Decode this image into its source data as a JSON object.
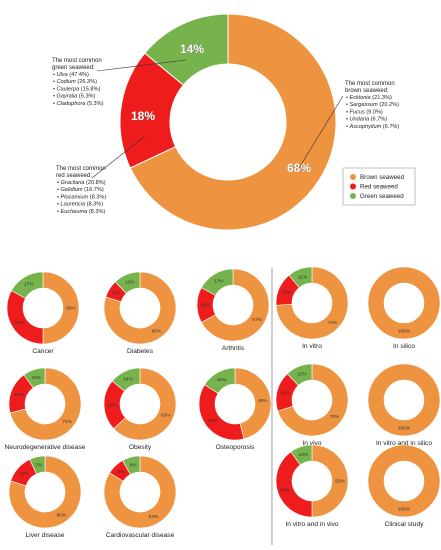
{
  "colors": {
    "brown": "#EE9340",
    "red": "#EE1C1C",
    "green": "#77B34D"
  },
  "chart_data": [
    {
      "type": "pie",
      "name": "main",
      "slices": [
        {
          "label": "Brown seaweed",
          "value": 68,
          "display": "68%"
        },
        {
          "label": "Red seaweed",
          "value": 18,
          "display": "18%"
        },
        {
          "label": "Green seaweed",
          "value": 14,
          "display": "14%"
        }
      ],
      "legend": [
        "Brown seaweed",
        "Red seaweed",
        "Green seaweed"
      ],
      "legend_position": "right",
      "annotations": {
        "green": {
          "title_lines": [
            "The most common",
            "green seaweed:"
          ],
          "items": [
            {
              "species": "Ulva",
              "pct": "(47.4%)"
            },
            {
              "species": "Codium",
              "pct": "(26.3%)"
            },
            {
              "species": "Caulerpa",
              "pct": "(15.8%)"
            },
            {
              "species": "Gayralia",
              "pct": "(5.3%)"
            },
            {
              "species": "Cladophora",
              "pct": "(5.3%)"
            }
          ]
        },
        "red": {
          "title_lines": [
            "The most common",
            "red seaweed:"
          ],
          "items": [
            {
              "species": "Gracilaria",
              "pct": "(20.8%)"
            },
            {
              "species": "Gelidium",
              "pct": "(16.7%)"
            },
            {
              "species": "Plocamium",
              "pct": "(8.3%)"
            },
            {
              "species": "Laurencia",
              "pct": "(8.3%)"
            },
            {
              "species": "Eucheuma",
              "pct": "(8.3%)"
            }
          ]
        },
        "brown": {
          "title_lines": [
            "The most common",
            "brown seaweed:"
          ],
          "items": [
            {
              "species": "Ecklonia",
              "pct": "(21.3%)"
            },
            {
              "species": "Sargassum",
              "pct": "(20.2%)"
            },
            {
              "species": "Fucus",
              "pct": "(9.0%)"
            },
            {
              "species": "Undaria",
              "pct": "(6.7%)"
            },
            {
              "species": "Ascophyllum",
              "pct": "(6.7%)"
            }
          ]
        }
      }
    },
    {
      "type": "pie",
      "name": "disease",
      "title": "Cancer",
      "brown": 50,
      "red": 33,
      "green": 17,
      "labels": [
        "50%",
        "33%",
        "17%"
      ]
    },
    {
      "type": "pie",
      "name": "disease",
      "title": "Diabetes",
      "brown": 80,
      "red": 8,
      "green": 12,
      "labels": [
        "80%",
        "8%",
        "12%"
      ]
    },
    {
      "type": "pie",
      "name": "disease",
      "title": "Arthritis",
      "brown": 67,
      "red": 16,
      "green": 17,
      "labels": [
        "67%",
        "16%",
        "17%"
      ]
    },
    {
      "type": "pie",
      "name": "disease",
      "title": "Neurodegenerative disease",
      "brown": 71,
      "red": 19,
      "green": 10,
      "labels": [
        "71%",
        "19%",
        "10%"
      ]
    },
    {
      "type": "pie",
      "name": "disease",
      "title": "Obesity",
      "brown": 63,
      "red": 23,
      "green": 14,
      "labels": [
        "63%",
        "23%",
        "14%"
      ]
    },
    {
      "type": "pie",
      "name": "disease",
      "title": "Osteoporosis",
      "brown": 46,
      "red": 38,
      "green": 16,
      "labels": [
        "46%",
        "38%",
        "16%"
      ]
    },
    {
      "type": "pie",
      "name": "disease",
      "title": "Liver disease",
      "brown": 80,
      "red": 13,
      "green": 7,
      "labels": [
        "80%",
        "13%",
        "7%"
      ]
    },
    {
      "type": "pie",
      "name": "disease",
      "title": "Cardiovascular disease",
      "brown": 84,
      "red": 8,
      "green": 8,
      "labels": [
        "84%",
        "8%",
        "8%"
      ]
    },
    {
      "type": "pie",
      "name": "study",
      "title": "In vitro",
      "brown": 74,
      "red": 15,
      "green": 11,
      "labels": [
        "74%",
        "15%",
        "11%"
      ]
    },
    {
      "type": "pie",
      "name": "study",
      "title": "In silico",
      "brown": 100,
      "red": 0,
      "green": 0,
      "labels": [
        "100%",
        "",
        ""
      ]
    },
    {
      "type": "pie",
      "name": "study",
      "title": "In vivo",
      "brown": 70,
      "red": 18,
      "green": 12,
      "labels": [
        "70%",
        "18%",
        "12%"
      ]
    },
    {
      "type": "pie",
      "name": "study",
      "title": "In vitro and in silico",
      "brown": 100,
      "red": 0,
      "green": 0,
      "labels": [
        "100%",
        "",
        ""
      ]
    },
    {
      "type": "pie",
      "name": "study",
      "title": "In vitro and in vivo",
      "brown": 50,
      "red": 40,
      "green": 10,
      "labels": [
        "50%",
        "40%",
        "10%"
      ]
    },
    {
      "type": "pie",
      "name": "study",
      "title": "Clinical study",
      "brown": 100,
      "red": 0,
      "green": 0,
      "labels": [
        "100%",
        "",
        ""
      ]
    }
  ]
}
